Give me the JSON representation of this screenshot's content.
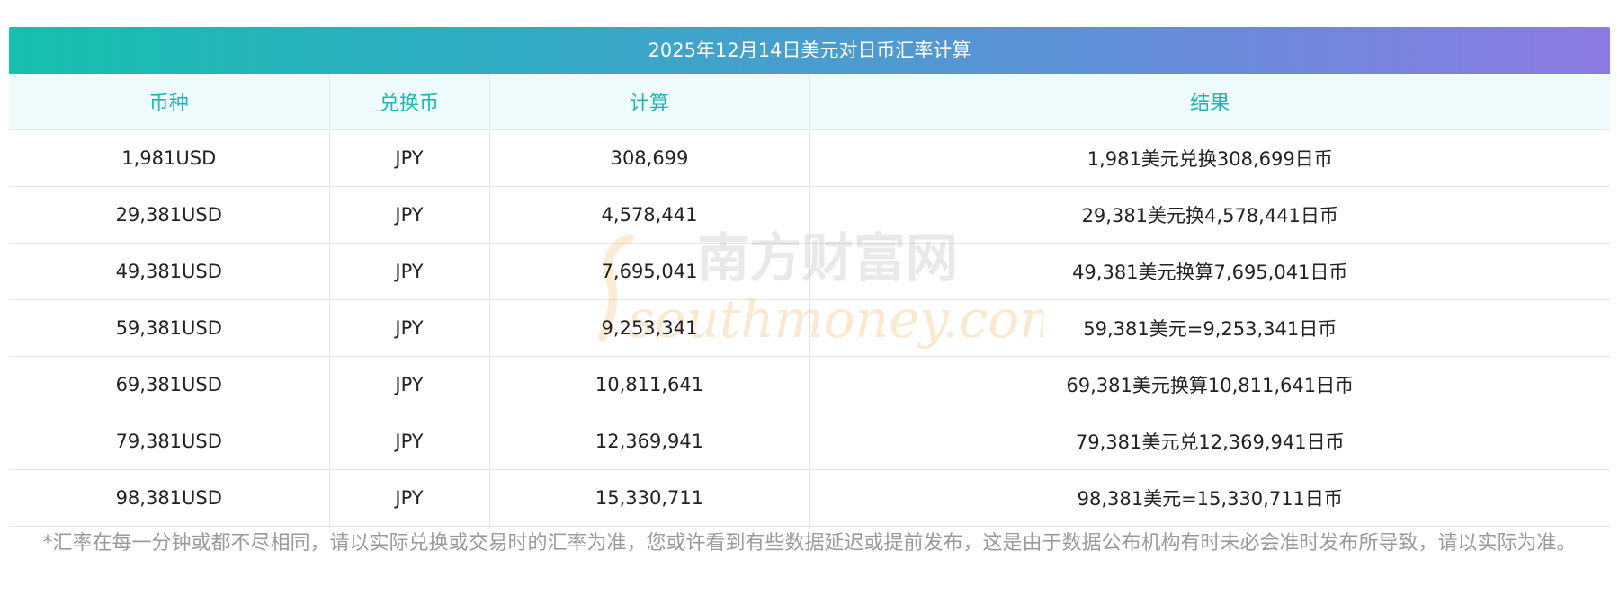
{
  "title": "2025年12月14日美元对日币汇率计算",
  "headers": [
    "币种",
    "兑换币",
    "计算",
    "结果"
  ],
  "rows": [
    [
      "1,981USD",
      "JPY",
      "308,699",
      "1,981美元兑换308,699日币"
    ],
    [
      "29,381USD",
      "JPY",
      "4,578,441",
      "29,381美元换4,578,441日币"
    ],
    [
      "49,381USD",
      "JPY",
      "7,695,041",
      "49,381美元换算7,695,041日币"
    ],
    [
      "59,381USD",
      "JPY",
      "9,253,341",
      "59,381美元=9,253,341日币"
    ],
    [
      "69,381USD",
      "JPY",
      "10,811,641",
      "69,381美元换算10,811,641日币"
    ],
    [
      "79,381USD",
      "JPY",
      "12,369,941",
      "79,381美元兑12,369,941日币"
    ],
    [
      "98,381USD",
      "JPY",
      "15,330,711",
      "98,381美元=15,330,711日币"
    ]
  ],
  "watermark": {
    "cn": "南方财富网",
    "en": "southmoney.com"
  },
  "footnote": "*汇率在每一分钟或都不尽相同，请以实际兑换或交易时的汇率为准，您或许看到有些数据延迟或提前发布，这是由于数据公布机构有时未必会准时发布所导致，请以实际为准。",
  "colors": {
    "header_text": "#1fb5b4",
    "header_bg": "#effcfd",
    "gradient_start": "#16bfae",
    "gradient_end": "#8b7ae3"
  }
}
